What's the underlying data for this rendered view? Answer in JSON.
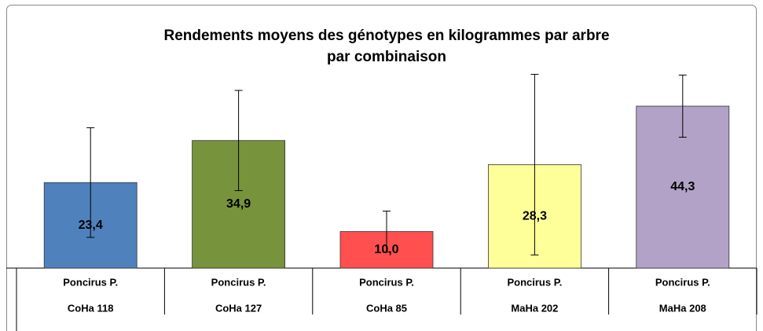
{
  "chart_data": {
    "type": "bar",
    "title": [
      "Rendements moyens des génotypes en kilogrammes par arbre",
      "par combinaison"
    ],
    "categories": [
      [
        "Poncirus P.",
        "CoHa 118"
      ],
      [
        "Poncirus P.",
        "CoHa 127"
      ],
      [
        "Poncirus P.",
        "CoHa 85"
      ],
      [
        "Poncirus P.",
        "MaHa 202"
      ],
      [
        "Poncirus P.",
        "MaHa 208"
      ]
    ],
    "values": [
      23.4,
      34.9,
      10.0,
      28.3,
      44.3
    ],
    "value_labels": [
      "23,4",
      "34,9",
      "10,0",
      "28,3",
      "44,3"
    ],
    "errors": [
      15.0,
      13.7,
      5.6,
      24.7,
      8.5
    ],
    "colors": [
      "#4f81bd",
      "#77933c",
      "#ff4f4f",
      "#ffff99",
      "#b3a2c7"
    ],
    "ylim": [
      0,
      60
    ]
  }
}
